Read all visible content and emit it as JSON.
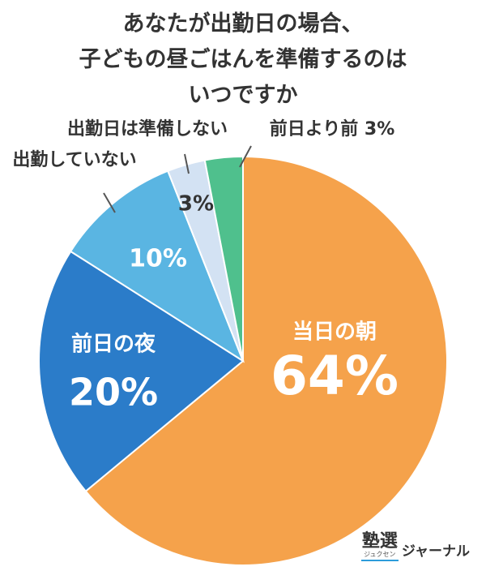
{
  "chart_data": {
    "type": "pie",
    "title_lines": [
      "あなたが出勤日の場合、",
      "子どもの昼ごはんを準備するのは",
      "いつですか"
    ],
    "slices": [
      {
        "label": "当日の朝",
        "value": 64,
        "value_label": "64%",
        "color": "#f5a24b"
      },
      {
        "label": "前日の夜",
        "value": 20,
        "value_label": "20%",
        "color": "#2b7cc9"
      },
      {
        "label": "出勤していない",
        "value": 10,
        "value_label": "10%",
        "color": "#5ab5e2"
      },
      {
        "label": "出勤日は準備しない",
        "value": 3,
        "value_label": "3%",
        "color": "#d3e2f3"
      },
      {
        "label": "前日より前",
        "value": 3,
        "value_label": "3%",
        "color": "#4fc08d"
      }
    ],
    "start_angle_deg": 0,
    "direction": "clockwise"
  },
  "logo": {
    "kanji": "塾選",
    "kana_small": "ジュクセン",
    "text": "ジャーナル"
  }
}
